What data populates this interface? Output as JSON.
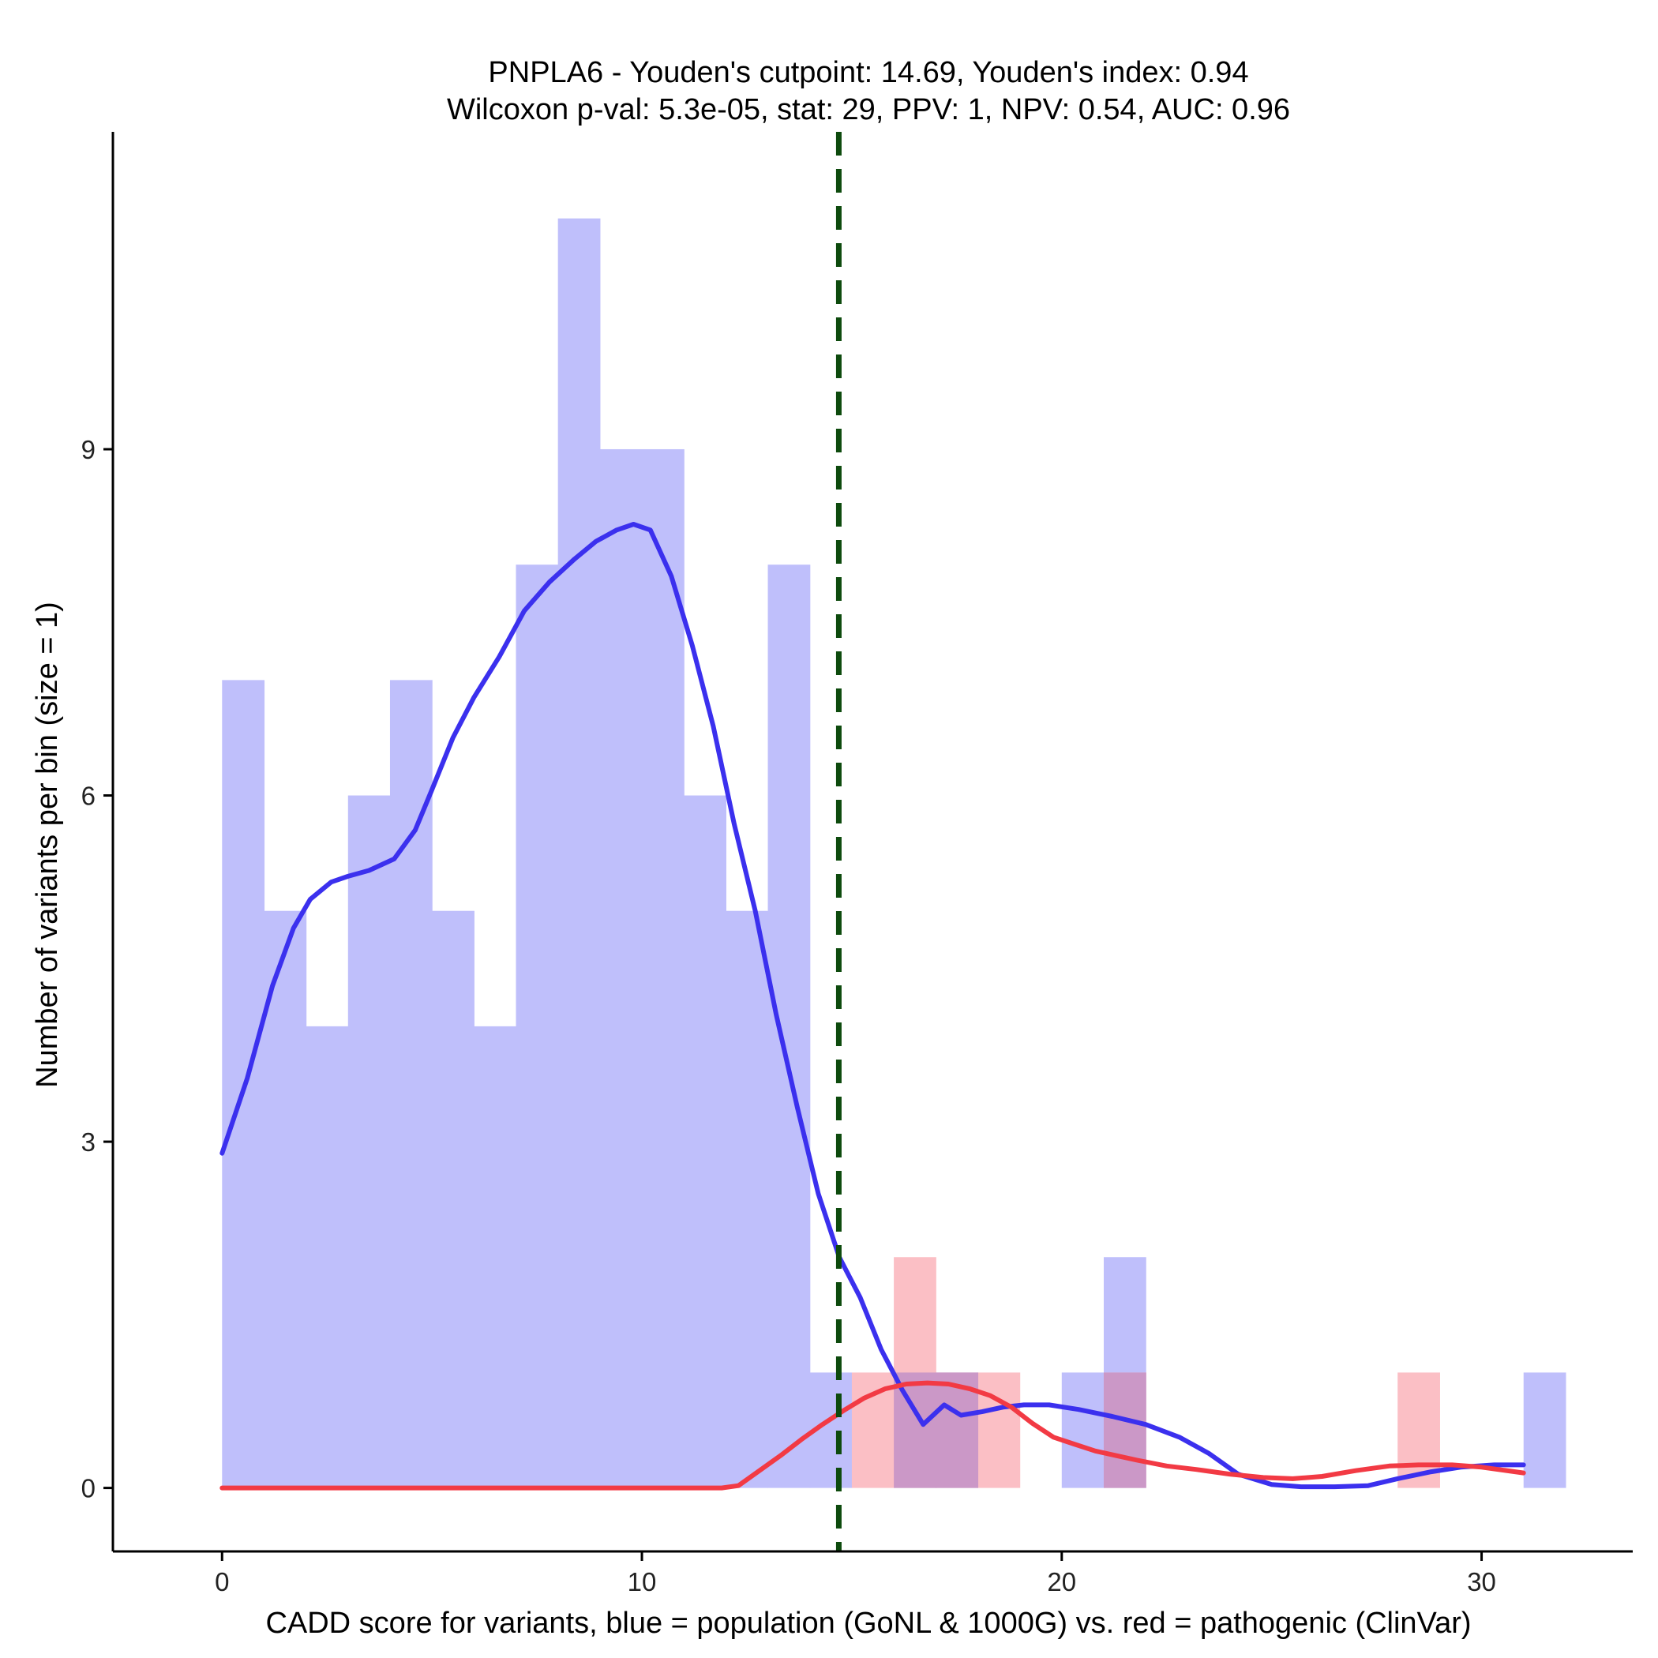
{
  "chart_data": {
    "type": "histogram+density",
    "title_line1": "PNPLA6 - Youden's cutpoint: 14.69, Youden's index: 0.94",
    "title_line2": "Wilcoxon p-val: 5.3e-05, stat: 29, PPV: 1, NPV: 0.54, AUC: 0.96",
    "xlabel": "CADD score for variants, blue = population (GoNL & 1000G) vs. red = pathogenic (ClinVar)",
    "ylabel": "Number of variants per bin (size = 1)",
    "xlim": [
      -2.6,
      33.6
    ],
    "ylim": [
      -0.55,
      11.75
    ],
    "xticks": [
      0,
      10,
      20,
      30
    ],
    "xtick_labels": [
      "0",
      "10",
      "20",
      "30"
    ],
    "yticks": [
      0,
      3,
      6,
      9
    ],
    "ytick_labels": [
      "0",
      "3",
      "6",
      "9"
    ],
    "bin_size": 1,
    "cutpoint": 14.69,
    "colors": {
      "population_bar": "#bfbffb",
      "pathogenic_bar": "#fbbfc5",
      "overlap_bar": "#cb98c7",
      "population_line": "#3b30ee",
      "pathogenic_line": "#f23a44",
      "cutpoint_line": "#0d4a0d",
      "axis": "#000000"
    },
    "series": [
      {
        "name": "population",
        "bins": [
          {
            "x0": 0,
            "count": 7
          },
          {
            "x0": 1,
            "count": 5
          },
          {
            "x0": 2,
            "count": 4
          },
          {
            "x0": 3,
            "count": 6
          },
          {
            "x0": 4,
            "count": 7
          },
          {
            "x0": 5,
            "count": 5
          },
          {
            "x0": 6,
            "count": 4
          },
          {
            "x0": 7,
            "count": 8
          },
          {
            "x0": 8,
            "count": 11
          },
          {
            "x0": 9,
            "count": 9
          },
          {
            "x0": 10,
            "count": 9
          },
          {
            "x0": 11,
            "count": 6
          },
          {
            "x0": 12,
            "count": 5
          },
          {
            "x0": 13,
            "count": 8
          },
          {
            "x0": 14,
            "count": 1
          },
          {
            "x0": 16,
            "count": 1
          },
          {
            "x0": 17,
            "count": 1
          },
          {
            "x0": 20,
            "count": 1
          },
          {
            "x0": 21,
            "count": 2
          },
          {
            "x0": 31,
            "count": 1
          }
        ],
        "density": [
          [
            0,
            2.9
          ],
          [
            0.6,
            3.55
          ],
          [
            1.2,
            4.35
          ],
          [
            1.7,
            4.85
          ],
          [
            2.1,
            5.1
          ],
          [
            2.6,
            5.25
          ],
          [
            3.0,
            5.3
          ],
          [
            3.5,
            5.35
          ],
          [
            4.1,
            5.45
          ],
          [
            4.6,
            5.7
          ],
          [
            5.0,
            6.05
          ],
          [
            5.5,
            6.5
          ],
          [
            6.0,
            6.85
          ],
          [
            6.6,
            7.2
          ],
          [
            7.2,
            7.6
          ],
          [
            7.8,
            7.85
          ],
          [
            8.4,
            8.05
          ],
          [
            8.9,
            8.2
          ],
          [
            9.4,
            8.3
          ],
          [
            9.8,
            8.35
          ],
          [
            10.2,
            8.3
          ],
          [
            10.7,
            7.9
          ],
          [
            11.2,
            7.3
          ],
          [
            11.7,
            6.6
          ],
          [
            12.2,
            5.75
          ],
          [
            12.7,
            5.0
          ],
          [
            13.2,
            4.1
          ],
          [
            13.7,
            3.3
          ],
          [
            14.2,
            2.55
          ],
          [
            14.7,
            2.0
          ],
          [
            15.2,
            1.65
          ],
          [
            15.7,
            1.2
          ],
          [
            16.2,
            0.85
          ],
          [
            16.7,
            0.55
          ],
          [
            17.2,
            0.72
          ],
          [
            17.6,
            0.63
          ],
          [
            18.1,
            0.66
          ],
          [
            18.6,
            0.7
          ],
          [
            19.1,
            0.72
          ],
          [
            19.7,
            0.72
          ],
          [
            20.4,
            0.68
          ],
          [
            21.2,
            0.62
          ],
          [
            22.0,
            0.55
          ],
          [
            22.8,
            0.44
          ],
          [
            23.5,
            0.3
          ],
          [
            24.2,
            0.12
          ],
          [
            25.0,
            0.03
          ],
          [
            25.7,
            0.01
          ],
          [
            26.5,
            0.01
          ],
          [
            27.3,
            0.02
          ],
          [
            28.0,
            0.08
          ],
          [
            28.8,
            0.14
          ],
          [
            29.5,
            0.18
          ],
          [
            30.3,
            0.2
          ],
          [
            31,
            0.2
          ]
        ]
      },
      {
        "name": "pathogenic",
        "bins": [
          {
            "x0": 15,
            "count": 1
          },
          {
            "x0": 16,
            "count": 2
          },
          {
            "x0": 17,
            "count": 1
          },
          {
            "x0": 18,
            "count": 1
          },
          {
            "x0": 21,
            "count": 1
          },
          {
            "x0": 28,
            "count": 1
          }
        ],
        "density": [
          [
            0,
            0.0
          ],
          [
            11.9,
            0.0
          ],
          [
            12.3,
            0.02
          ],
          [
            12.8,
            0.15
          ],
          [
            13.3,
            0.28
          ],
          [
            13.8,
            0.42
          ],
          [
            14.3,
            0.55
          ],
          [
            14.8,
            0.67
          ],
          [
            15.3,
            0.78
          ],
          [
            15.8,
            0.86
          ],
          [
            16.3,
            0.9
          ],
          [
            16.8,
            0.91
          ],
          [
            17.3,
            0.9
          ],
          [
            17.8,
            0.86
          ],
          [
            18.3,
            0.8
          ],
          [
            18.8,
            0.7
          ],
          [
            19.3,
            0.56
          ],
          [
            19.8,
            0.44
          ],
          [
            20.3,
            0.38
          ],
          [
            20.8,
            0.32
          ],
          [
            21.3,
            0.28
          ],
          [
            21.8,
            0.24
          ],
          [
            22.5,
            0.19
          ],
          [
            23.2,
            0.16
          ],
          [
            24.0,
            0.12
          ],
          [
            24.8,
            0.09
          ],
          [
            25.5,
            0.08
          ],
          [
            26.2,
            0.1
          ],
          [
            27.0,
            0.15
          ],
          [
            27.8,
            0.19
          ],
          [
            28.5,
            0.2
          ],
          [
            29.3,
            0.2
          ],
          [
            30.0,
            0.18
          ],
          [
            31,
            0.13
          ]
        ]
      }
    ]
  }
}
